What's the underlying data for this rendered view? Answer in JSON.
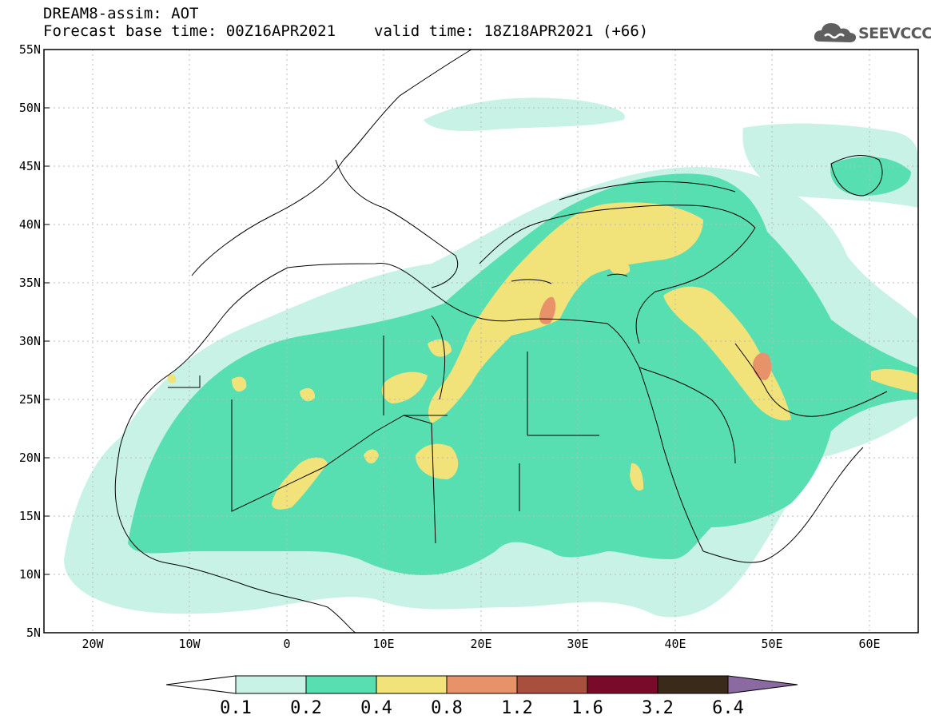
{
  "header": {
    "line1": "DREAM8-assim: AOT",
    "base_time": "Forecast base time: 00Z16APR2021",
    "valid_time": "valid time: 18Z18APR2021 (+66)"
  },
  "logo": {
    "text": "SEEVCCC",
    "icon": "cloud-icon"
  },
  "map": {
    "lon_range": [
      -25,
      65
    ],
    "lat_range": [
      5,
      55
    ],
    "lat_labels": [
      "55N",
      "50N",
      "45N",
      "40N",
      "35N",
      "30N",
      "25N",
      "20N",
      "15N",
      "10N",
      "5N"
    ],
    "lon_labels": [
      "20W",
      "10W",
      "0",
      "10E",
      "20E",
      "30E",
      "40E",
      "50E",
      "60E"
    ],
    "gridlines": "dotted"
  },
  "colorbar": {
    "thresholds": [
      "0.1",
      "0.2",
      "0.4",
      "0.8",
      "1.2",
      "1.6",
      "3.2",
      "6.4"
    ],
    "colors": [
      "#ffffff",
      "#c8f2e6",
      "#57dfb1",
      "#f2e27a",
      "#e8926a",
      "#a8503d",
      "#7a0a2a",
      "#3a2a1a",
      "#8a6aa0"
    ]
  }
}
